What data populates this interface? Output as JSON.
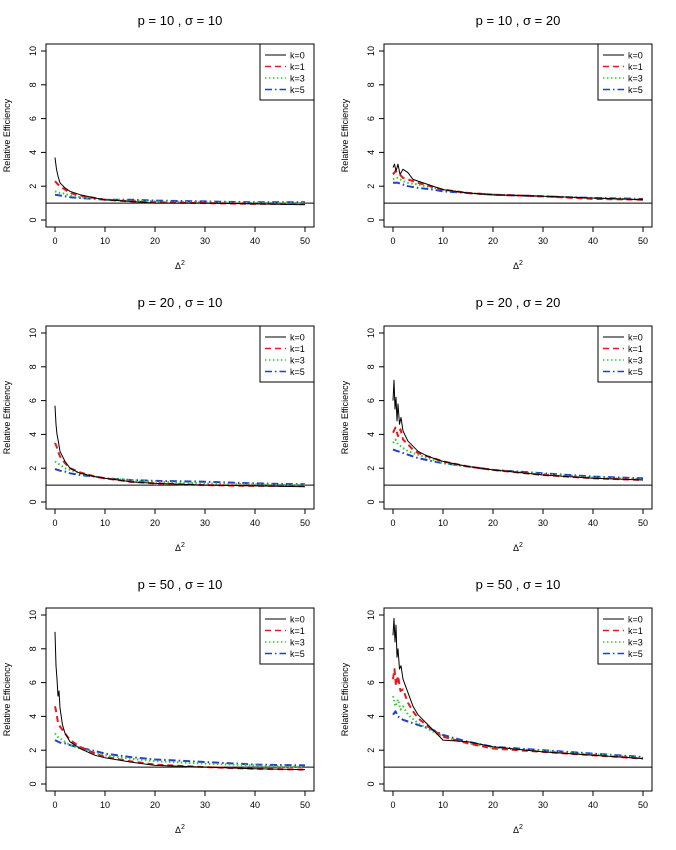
{
  "figure": {
    "ylabel": "Relative Efficiency",
    "xlabel": "Δ",
    "xlabel_superscript": "2"
  },
  "legend": {
    "placement": "top-right",
    "labels": [
      "k=0",
      "k=1",
      "k=3",
      "k=5"
    ]
  },
  "colors": {
    "k0": "#000000",
    "k1": "#e41a1c",
    "k3": "#33cc33",
    "k5": "#1f3fcc"
  },
  "chart_data": [
    {
      "type": "line",
      "title": "p = 10 , σ = 10",
      "xlim": [
        0,
        50
      ],
      "ylim": [
        0,
        10
      ],
      "xticks": [
        0,
        10,
        20,
        30,
        40,
        50
      ],
      "yticks": [
        0,
        2,
        4,
        6,
        8,
        10
      ],
      "reference_line": 1,
      "series": [
        {
          "name": "k=0",
          "x": [
            0,
            0.3,
            0.6,
            1,
            2,
            3,
            5,
            8,
            10,
            15,
            20,
            30,
            40,
            50
          ],
          "values": [
            3.7,
            3.0,
            2.6,
            2.2,
            1.9,
            1.7,
            1.5,
            1.3,
            1.2,
            1.1,
            1.0,
            1.0,
            0.95,
            0.9
          ]
        },
        {
          "name": "k=1",
          "x": [
            0,
            0.3,
            0.6,
            1,
            2,
            3,
            5,
            8,
            10,
            15,
            20,
            30,
            40,
            50
          ],
          "values": [
            2.3,
            2.2,
            2.1,
            2.0,
            1.8,
            1.6,
            1.45,
            1.3,
            1.2,
            1.1,
            1.05,
            1.0,
            0.95,
            0.95
          ]
        },
        {
          "name": "k=3",
          "x": [
            0,
            0.5,
            1,
            2,
            3,
            5,
            8,
            10,
            15,
            20,
            30,
            40,
            50
          ],
          "values": [
            1.7,
            1.65,
            1.6,
            1.55,
            1.45,
            1.35,
            1.25,
            1.2,
            1.15,
            1.1,
            1.05,
            1.0,
            1.0
          ]
        },
        {
          "name": "k=5",
          "x": [
            0,
            1,
            2,
            3,
            5,
            8,
            10,
            15,
            20,
            30,
            40,
            50
          ],
          "values": [
            1.5,
            1.45,
            1.4,
            1.35,
            1.3,
            1.25,
            1.2,
            1.2,
            1.15,
            1.1,
            1.05,
            1.05
          ]
        }
      ]
    },
    {
      "type": "line",
      "title": "p = 10 , σ = 20",
      "xlim": [
        0,
        50
      ],
      "ylim": [
        0,
        10
      ],
      "xticks": [
        0,
        10,
        20,
        30,
        40,
        50
      ],
      "yticks": [
        0,
        2,
        4,
        6,
        8,
        10
      ],
      "reference_line": 1,
      "series": [
        {
          "name": "k=0",
          "x": [
            0,
            0.3,
            0.6,
            1,
            1.4,
            2,
            3,
            4,
            5,
            7,
            10,
            15,
            20,
            30,
            40,
            50
          ],
          "values": [
            3.1,
            3.3,
            2.9,
            3.3,
            2.7,
            3.0,
            2.8,
            2.4,
            2.3,
            2.1,
            1.8,
            1.6,
            1.5,
            1.4,
            1.3,
            1.2
          ]
        },
        {
          "name": "k=1",
          "x": [
            0,
            0.5,
            1,
            2,
            3,
            5,
            8,
            10,
            15,
            20,
            30,
            40,
            50
          ],
          "values": [
            2.7,
            2.9,
            2.8,
            2.5,
            2.4,
            2.2,
            1.95,
            1.8,
            1.6,
            1.5,
            1.4,
            1.25,
            1.2
          ]
        },
        {
          "name": "k=3",
          "x": [
            0,
            0.5,
            1,
            2,
            3,
            5,
            8,
            10,
            15,
            20,
            30,
            40,
            50
          ],
          "values": [
            2.4,
            2.5,
            2.5,
            2.3,
            2.2,
            2.1,
            1.9,
            1.8,
            1.6,
            1.5,
            1.4,
            1.3,
            1.2
          ]
        },
        {
          "name": "k=5",
          "x": [
            0,
            1,
            2,
            3,
            5,
            8,
            10,
            15,
            20,
            30,
            40,
            50
          ],
          "values": [
            2.2,
            2.2,
            2.1,
            2.0,
            1.9,
            1.8,
            1.7,
            1.6,
            1.5,
            1.4,
            1.3,
            1.25
          ]
        }
      ]
    },
    {
      "type": "line",
      "title": "p = 20 , σ = 10",
      "xlim": [
        0,
        50
      ],
      "ylim": [
        0,
        10
      ],
      "xticks": [
        0,
        10,
        20,
        30,
        40,
        50
      ],
      "yticks": [
        0,
        2,
        4,
        6,
        8,
        10
      ],
      "reference_line": 1,
      "series": [
        {
          "name": "k=0",
          "x": [
            0,
            0.2,
            0.4,
            0.6,
            1,
            2,
            3,
            5,
            8,
            10,
            15,
            20,
            30,
            40,
            50
          ],
          "values": [
            5.7,
            4.6,
            4.0,
            3.7,
            3.0,
            2.4,
            2.0,
            1.7,
            1.5,
            1.4,
            1.2,
            1.1,
            1.0,
            0.95,
            0.9
          ]
        },
        {
          "name": "k=1",
          "x": [
            0,
            0.3,
            0.6,
            1,
            2,
            3,
            5,
            8,
            10,
            15,
            20,
            30,
            40,
            50
          ],
          "values": [
            3.5,
            3.3,
            3.0,
            2.7,
            2.3,
            2.0,
            1.75,
            1.5,
            1.4,
            1.2,
            1.1,
            1.0,
            0.95,
            0.95
          ]
        },
        {
          "name": "k=3",
          "x": [
            0,
            0.5,
            1,
            2,
            3,
            5,
            8,
            10,
            15,
            20,
            30,
            40,
            50
          ],
          "values": [
            2.4,
            2.3,
            2.2,
            2.0,
            1.9,
            1.7,
            1.5,
            1.4,
            1.3,
            1.2,
            1.1,
            1.05,
            1.0
          ]
        },
        {
          "name": "k=5",
          "x": [
            0,
            1,
            2,
            3,
            5,
            8,
            10,
            15,
            20,
            30,
            40,
            50
          ],
          "values": [
            1.95,
            1.85,
            1.8,
            1.7,
            1.6,
            1.5,
            1.4,
            1.3,
            1.25,
            1.2,
            1.1,
            1.05
          ]
        }
      ]
    },
    {
      "type": "line",
      "title": "p = 20 , σ = 20",
      "xlim": [
        0,
        50
      ],
      "ylim": [
        0,
        10
      ],
      "xticks": [
        0,
        10,
        20,
        30,
        40,
        50
      ],
      "yticks": [
        0,
        2,
        4,
        6,
        8,
        10
      ],
      "reference_line": 1,
      "series": [
        {
          "name": "k=0",
          "x": [
            0,
            0.2,
            0.4,
            0.6,
            0.8,
            1,
            1.3,
            1.6,
            2,
            3,
            4,
            5,
            7,
            10,
            15,
            20,
            30,
            40,
            50
          ],
          "values": [
            6.0,
            7.2,
            5.5,
            6.2,
            4.8,
            5.8,
            4.6,
            5.0,
            4.2,
            3.6,
            3.3,
            3.0,
            2.7,
            2.4,
            2.1,
            1.9,
            1.6,
            1.4,
            1.3
          ]
        },
        {
          "name": "k=1",
          "x": [
            0,
            0.5,
            1,
            1.5,
            2,
            3,
            4,
            5,
            7,
            10,
            15,
            20,
            30,
            40,
            50
          ],
          "values": [
            4.1,
            4.4,
            3.9,
            4.3,
            3.7,
            3.4,
            3.1,
            2.9,
            2.7,
            2.4,
            2.1,
            1.9,
            1.6,
            1.4,
            1.3
          ]
        },
        {
          "name": "k=3",
          "x": [
            0,
            0.5,
            1,
            2,
            3,
            5,
            8,
            10,
            15,
            20,
            30,
            40,
            50
          ],
          "values": [
            3.5,
            3.7,
            3.4,
            3.2,
            3.0,
            2.8,
            2.5,
            2.3,
            2.1,
            1.9,
            1.65,
            1.45,
            1.35
          ]
        },
        {
          "name": "k=5",
          "x": [
            0,
            1,
            2,
            3,
            5,
            8,
            10,
            15,
            20,
            30,
            40,
            50
          ],
          "values": [
            3.1,
            3.0,
            2.9,
            2.8,
            2.6,
            2.4,
            2.3,
            2.1,
            1.9,
            1.7,
            1.5,
            1.4
          ]
        }
      ]
    },
    {
      "type": "line",
      "title": "p = 50 , σ = 10",
      "xlim": [
        0,
        50
      ],
      "ylim": [
        0,
        10
      ],
      "xticks": [
        0,
        10,
        20,
        30,
        40,
        50
      ],
      "yticks": [
        0,
        2,
        4,
        6,
        8,
        10
      ],
      "reference_line": 1,
      "series": [
        {
          "name": "k=0",
          "x": [
            0,
            0.2,
            0.4,
            0.6,
            0.8,
            1,
            1.5,
            2,
            3,
            5,
            8,
            10,
            15,
            20,
            30,
            40,
            50
          ],
          "values": [
            9.0,
            7.0,
            6.2,
            5.2,
            5.5,
            4.5,
            3.5,
            3.0,
            2.5,
            2.1,
            1.7,
            1.55,
            1.3,
            1.1,
            1.0,
            0.9,
            0.85
          ]
        },
        {
          "name": "k=1",
          "x": [
            0,
            0.3,
            0.6,
            1,
            2,
            3,
            5,
            8,
            10,
            15,
            20,
            30,
            40,
            50
          ],
          "values": [
            4.6,
            4.2,
            3.6,
            3.4,
            3.0,
            2.6,
            2.2,
            1.8,
            1.6,
            1.35,
            1.15,
            1.0,
            0.9,
            0.85
          ]
        },
        {
          "name": "k=3",
          "x": [
            0,
            0.5,
            1,
            2,
            3,
            5,
            8,
            10,
            15,
            20,
            30,
            40,
            50
          ],
          "values": [
            3.0,
            2.8,
            2.7,
            2.5,
            2.3,
            2.1,
            1.85,
            1.7,
            1.5,
            1.35,
            1.2,
            1.1,
            1.0
          ]
        },
        {
          "name": "k=5",
          "x": [
            0,
            1,
            2,
            3,
            5,
            8,
            10,
            15,
            20,
            30,
            40,
            50
          ],
          "values": [
            2.6,
            2.45,
            2.4,
            2.3,
            2.15,
            1.95,
            1.8,
            1.6,
            1.45,
            1.3,
            1.15,
            1.1
          ]
        }
      ]
    },
    {
      "type": "line",
      "title": "p = 50 , σ = 10",
      "xlim": [
        0,
        50
      ],
      "ylim": [
        0,
        10
      ],
      "xticks": [
        0,
        10,
        20,
        30,
        40,
        50
      ],
      "yticks": [
        0,
        2,
        4,
        6,
        8,
        10
      ],
      "reference_line": 1,
      "series": [
        {
          "name": "k=0",
          "x": [
            0,
            0.2,
            0.4,
            0.6,
            0.8,
            1,
            1.3,
            1.6,
            2,
            3,
            4,
            5,
            7,
            9,
            10,
            15,
            20,
            30,
            40,
            50
          ],
          "values": [
            8.8,
            9.8,
            8.4,
            9.4,
            7.5,
            8.0,
            6.8,
            7.0,
            6.2,
            5.4,
            4.6,
            4.1,
            3.5,
            2.9,
            2.6,
            2.5,
            2.2,
            1.9,
            1.7,
            1.5
          ]
        },
        {
          "name": "k=1",
          "x": [
            0,
            0.3,
            0.6,
            1,
            1.5,
            2,
            3,
            4,
            5,
            7,
            10,
            15,
            20,
            30,
            40,
            50
          ],
          "values": [
            6.2,
            6.8,
            5.8,
            6.4,
            5.5,
            5.6,
            4.8,
            4.3,
            3.9,
            3.4,
            2.8,
            2.4,
            2.1,
            1.9,
            1.7,
            1.5
          ]
        },
        {
          "name": "k=3",
          "x": [
            0,
            0.5,
            1,
            1.5,
            2,
            3,
            5,
            8,
            10,
            15,
            20,
            30,
            40,
            50
          ],
          "values": [
            5.2,
            4.6,
            5.0,
            4.4,
            4.6,
            4.1,
            3.6,
            3.1,
            2.8,
            2.4,
            2.15,
            1.95,
            1.75,
            1.55
          ]
        },
        {
          "name": "k=5",
          "x": [
            0,
            0.5,
            1,
            2,
            3,
            5,
            8,
            10,
            15,
            20,
            30,
            40,
            50
          ],
          "values": [
            4.1,
            4.3,
            4.0,
            3.8,
            3.7,
            3.5,
            3.2,
            2.9,
            2.5,
            2.2,
            2.0,
            1.8,
            1.6
          ]
        }
      ]
    }
  ]
}
